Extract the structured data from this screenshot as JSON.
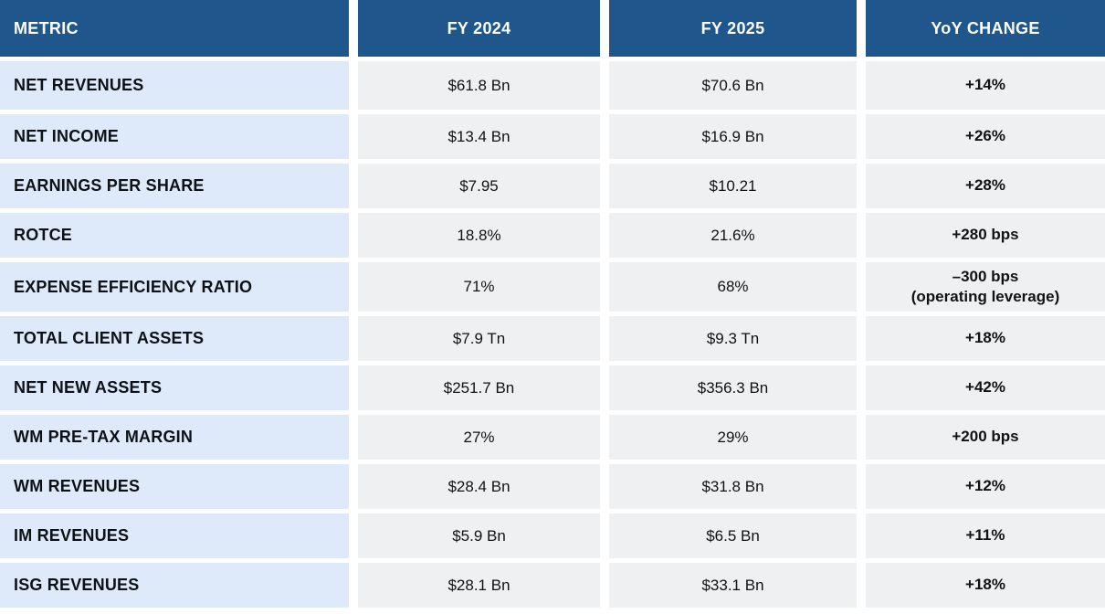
{
  "chart_data": {
    "type": "table",
    "columns": [
      "METRIC",
      "FY 2024",
      "FY 2025",
      "YoY CHANGE"
    ],
    "rows": [
      {
        "metric": "NET REVENUES",
        "fy2024": "$61.8 Bn",
        "fy2025": "$70.6 Bn",
        "yoy": "+14%"
      },
      {
        "metric": "NET INCOME",
        "fy2024": "$13.4 Bn",
        "fy2025": "$16.9 Bn",
        "yoy": "+26%"
      },
      {
        "metric": "EARNINGS PER SHARE",
        "fy2024": "$7.95",
        "fy2025": "$10.21",
        "yoy": "+28%"
      },
      {
        "metric": "ROTCE",
        "fy2024": "18.8%",
        "fy2025": "21.6%",
        "yoy": "+280 bps"
      },
      {
        "metric": "EXPENSE EFFICIENCY RATIO",
        "fy2024": "71%",
        "fy2025": "68%",
        "yoy": "–300 bps\n(operating leverage)"
      },
      {
        "metric": "TOTAL CLIENT ASSETS",
        "fy2024": "$7.9 Tn",
        "fy2025": "$9.3 Tn",
        "yoy": "+18%"
      },
      {
        "metric": "NET NEW ASSETS",
        "fy2024": "$251.7 Bn",
        "fy2025": "$356.3 Bn",
        "yoy": "+42%"
      },
      {
        "metric": "WM PRE-TAX MARGIN",
        "fy2024": "27%",
        "fy2025": "29%",
        "yoy": "+200 bps"
      },
      {
        "metric": "WM REVENUES",
        "fy2024": "$28.4 Bn",
        "fy2025": "$31.8 Bn",
        "yoy": "+12%"
      },
      {
        "metric": "IM REVENUES",
        "fy2024": "$5.9 Bn",
        "fy2025": "$6.5 Bn",
        "yoy": "+11%"
      },
      {
        "metric": "ISG REVENUES",
        "fy2024": "$28.1 Bn",
        "fy2025": "$33.1 Bn",
        "yoy": "+18%"
      }
    ]
  },
  "colors": {
    "header_bg": "#1F578C",
    "header_text": "#FFFFFF",
    "metric_bg": "#DEEAFA",
    "value_bg": "#EEF0F1",
    "metric_text": "#0C1118",
    "value_text": "#121212"
  }
}
